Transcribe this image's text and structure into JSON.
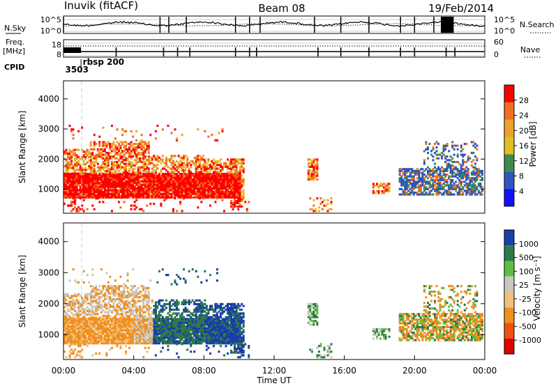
{
  "header": {
    "station": "Inuvik (fitACF)",
    "beam": "Beam 08",
    "date": "19/Feb/2014"
  },
  "chart_data": [
    {
      "type": "line",
      "panel": "noise",
      "left_label": "N.Sky",
      "right_label": "N.Search",
      "left_ticks": [
        "10^5",
        "10^0"
      ],
      "right_ticks": [
        "10^5",
        "10^0"
      ],
      "left_scale": "log",
      "series": [
        {
          "name": "N.Sky",
          "style": "solid"
        },
        {
          "name": "N.Search",
          "style": "dotted"
        }
      ]
    },
    {
      "type": "line",
      "panel": "frequency",
      "left_label_lines": [
        "Freq.",
        "[MHz]"
      ],
      "right_label": "Nave",
      "left_ticks": [
        "18",
        "8"
      ],
      "right_ticks": [
        "60",
        "0"
      ],
      "series": [
        {
          "name": "Freq.",
          "style": "solid"
        },
        {
          "name": "Nave",
          "style": "dotted"
        }
      ]
    },
    {
      "type": "table",
      "panel": "cpid",
      "label": "CPID",
      "entries": [
        {
          "time_h": 0.1,
          "text": "3503"
        },
        {
          "time_h": 1.1,
          "text": "rbsp 200"
        }
      ]
    },
    {
      "type": "heatmap",
      "panel": "power",
      "ylabel": "Slant Range [km]",
      "yticks": [
        1000,
        2000,
        3000,
        4000
      ],
      "ylim": [
        200,
        4600
      ],
      "colorbar": {
        "label": "Power [dB]",
        "ticks": [
          "4",
          "8",
          "12",
          "16",
          "20",
          "24",
          "28"
        ],
        "colors": [
          "#1010ff",
          "#2f55c0",
          "#3d8a50",
          "#e0c020",
          "#f0a030",
          "#f07020",
          "#ff0000"
        ]
      }
    },
    {
      "type": "heatmap",
      "panel": "velocity",
      "ylabel": "Slant Range [km]",
      "yticks": [
        1000,
        2000,
        3000,
        4000
      ],
      "ylim": [
        200,
        4600
      ],
      "xlabel": "Time UT",
      "xticks": [
        "00:00",
        "04:00",
        "08:00",
        "12:00",
        "16:00",
        "20:00",
        "00:00"
      ],
      "colorbar": {
        "label": "Velocity [m s⁻¹]",
        "ticks": [
          "1000",
          "500",
          "100",
          "25",
          "-25",
          "-100",
          "-500",
          "-1000"
        ],
        "colors": [
          "#1a3fa8",
          "#2f7a4a",
          "#5cc040",
          "#c8c8c0",
          "#f0c080",
          "#f09020",
          "#f05010",
          "#e00000"
        ]
      }
    }
  ]
}
